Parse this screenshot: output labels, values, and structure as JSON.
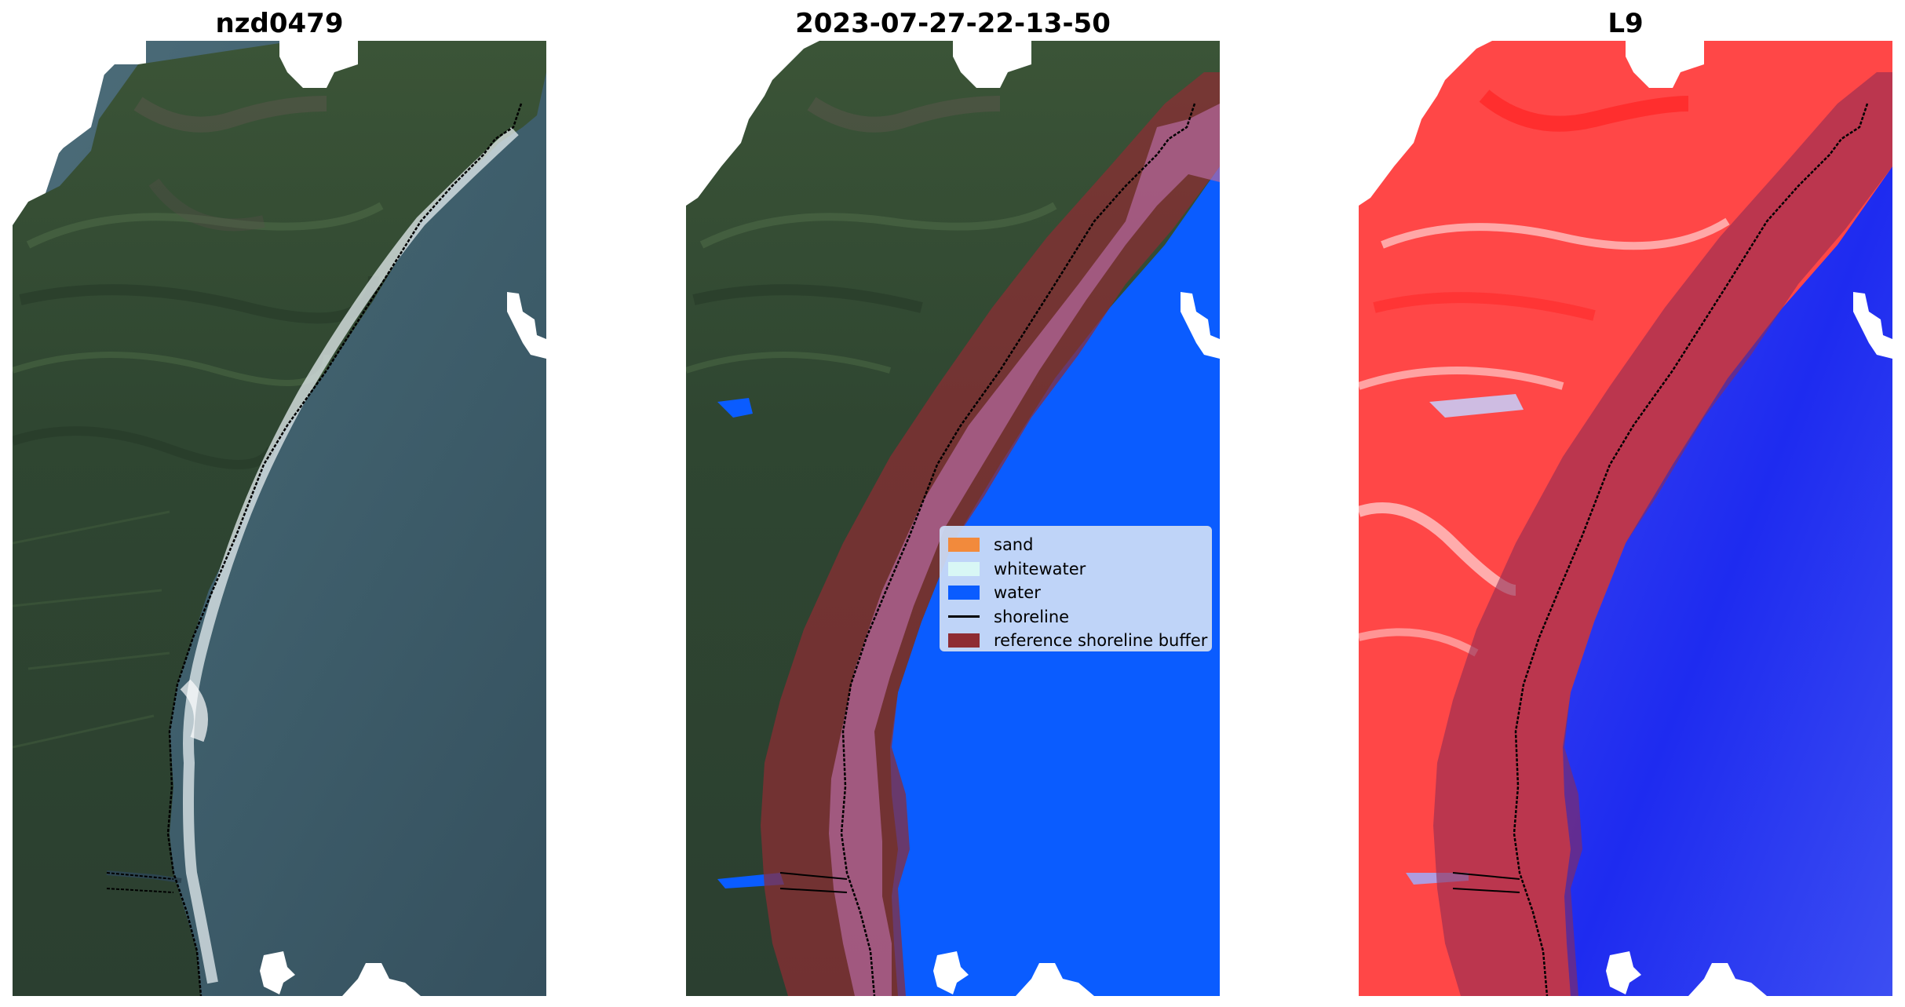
{
  "panels": [
    {
      "title": "nzd0479"
    },
    {
      "title": "2023-07-27-22-13-50"
    },
    {
      "title": "L9"
    }
  ],
  "legend": {
    "items": [
      {
        "label": "sand",
        "color": "#f28a3c",
        "kind": "patch"
      },
      {
        "label": "whitewater",
        "color": "#d8f7f5",
        "kind": "patch"
      },
      {
        "label": "water",
        "color": "#0a5cff",
        "kind": "patch"
      },
      {
        "label": "shoreline",
        "color": "#000000",
        "kind": "line"
      },
      {
        "label": "reference shoreline buffer",
        "color": "#8e2c33",
        "kind": "patch"
      }
    ]
  },
  "colors": {
    "land_dark": "#2f4334",
    "land_green": "#3d5a3a",
    "ocean_rgb": "#3c5a68",
    "water_class": "#0a5cff",
    "buffer": "#8e2c33",
    "index_land": "#ff3a3a",
    "index_water": "#1f2cf0"
  }
}
